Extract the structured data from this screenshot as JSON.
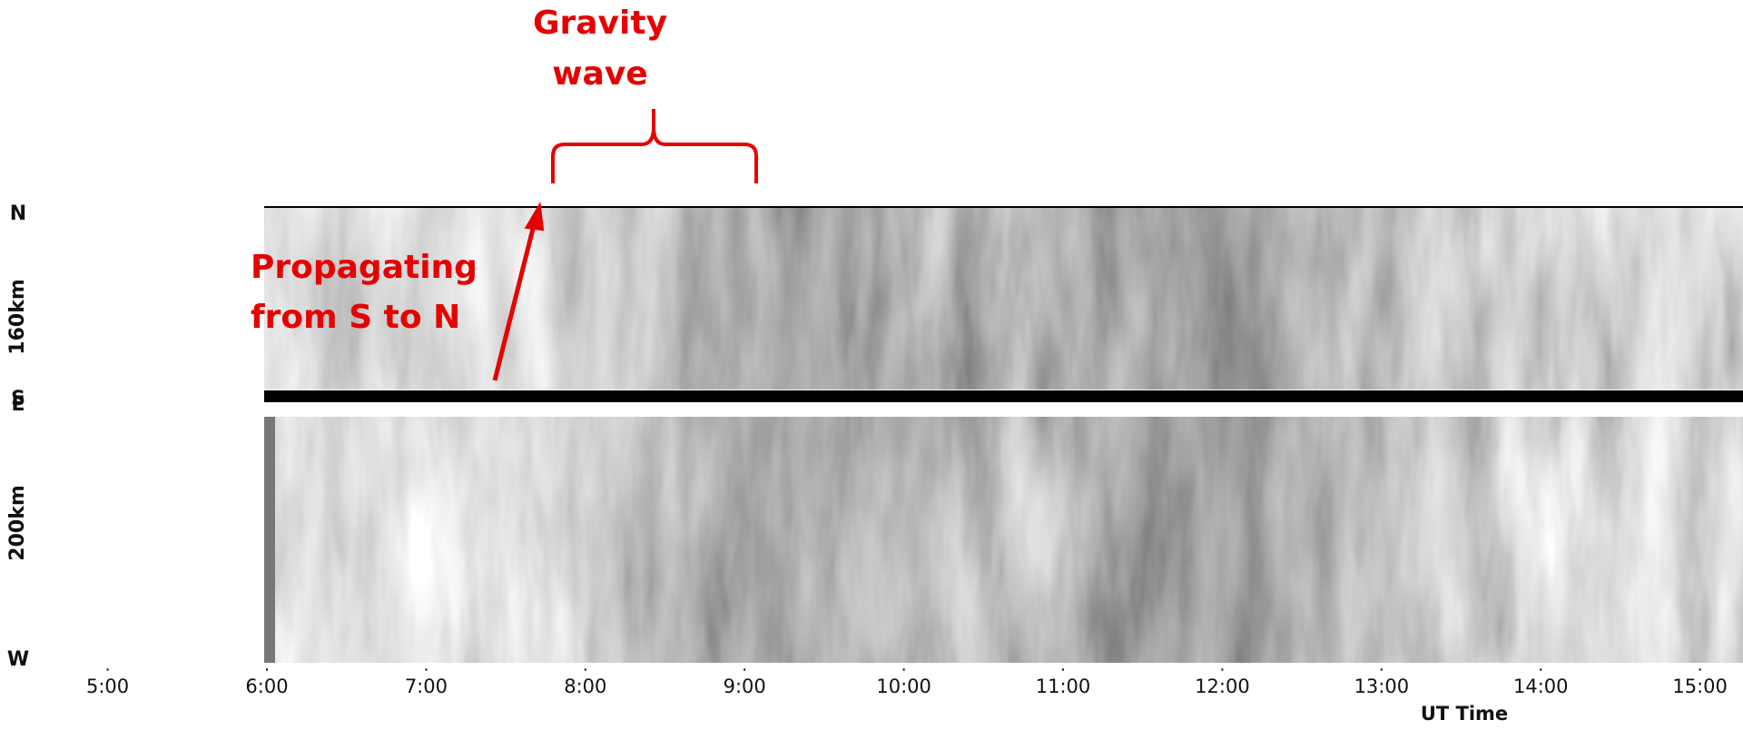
{
  "chart_data": {
    "type": "keogram",
    "xlabel": "UT Time",
    "xlim": [
      5,
      15.27
    ],
    "xticks": [
      {
        "value": 5,
        "label": "5:00"
      },
      {
        "value": 6,
        "label": "6:00"
      },
      {
        "value": 7,
        "label": "7:00"
      },
      {
        "value": 8,
        "label": "8:00"
      },
      {
        "value": 9,
        "label": "9:00"
      },
      {
        "value": 10,
        "label": "10:00"
      },
      {
        "value": 11,
        "label": "11:00"
      },
      {
        "value": 12,
        "label": "12:00"
      },
      {
        "value": 13,
        "label": "13:00"
      },
      {
        "value": 14,
        "label": "14:00"
      },
      {
        "value": 15,
        "label": "15:00"
      }
    ],
    "panels": [
      {
        "label": "160km",
        "top": "N",
        "bottom": "S"
      },
      {
        "label": "200km",
        "top": "E",
        "bottom": "W"
      }
    ],
    "annotations": [
      {
        "lines": [
          "Gravity",
          "wave"
        ]
      },
      {
        "lines": [
          "Propagating",
          "from S to N"
        ]
      }
    ]
  }
}
